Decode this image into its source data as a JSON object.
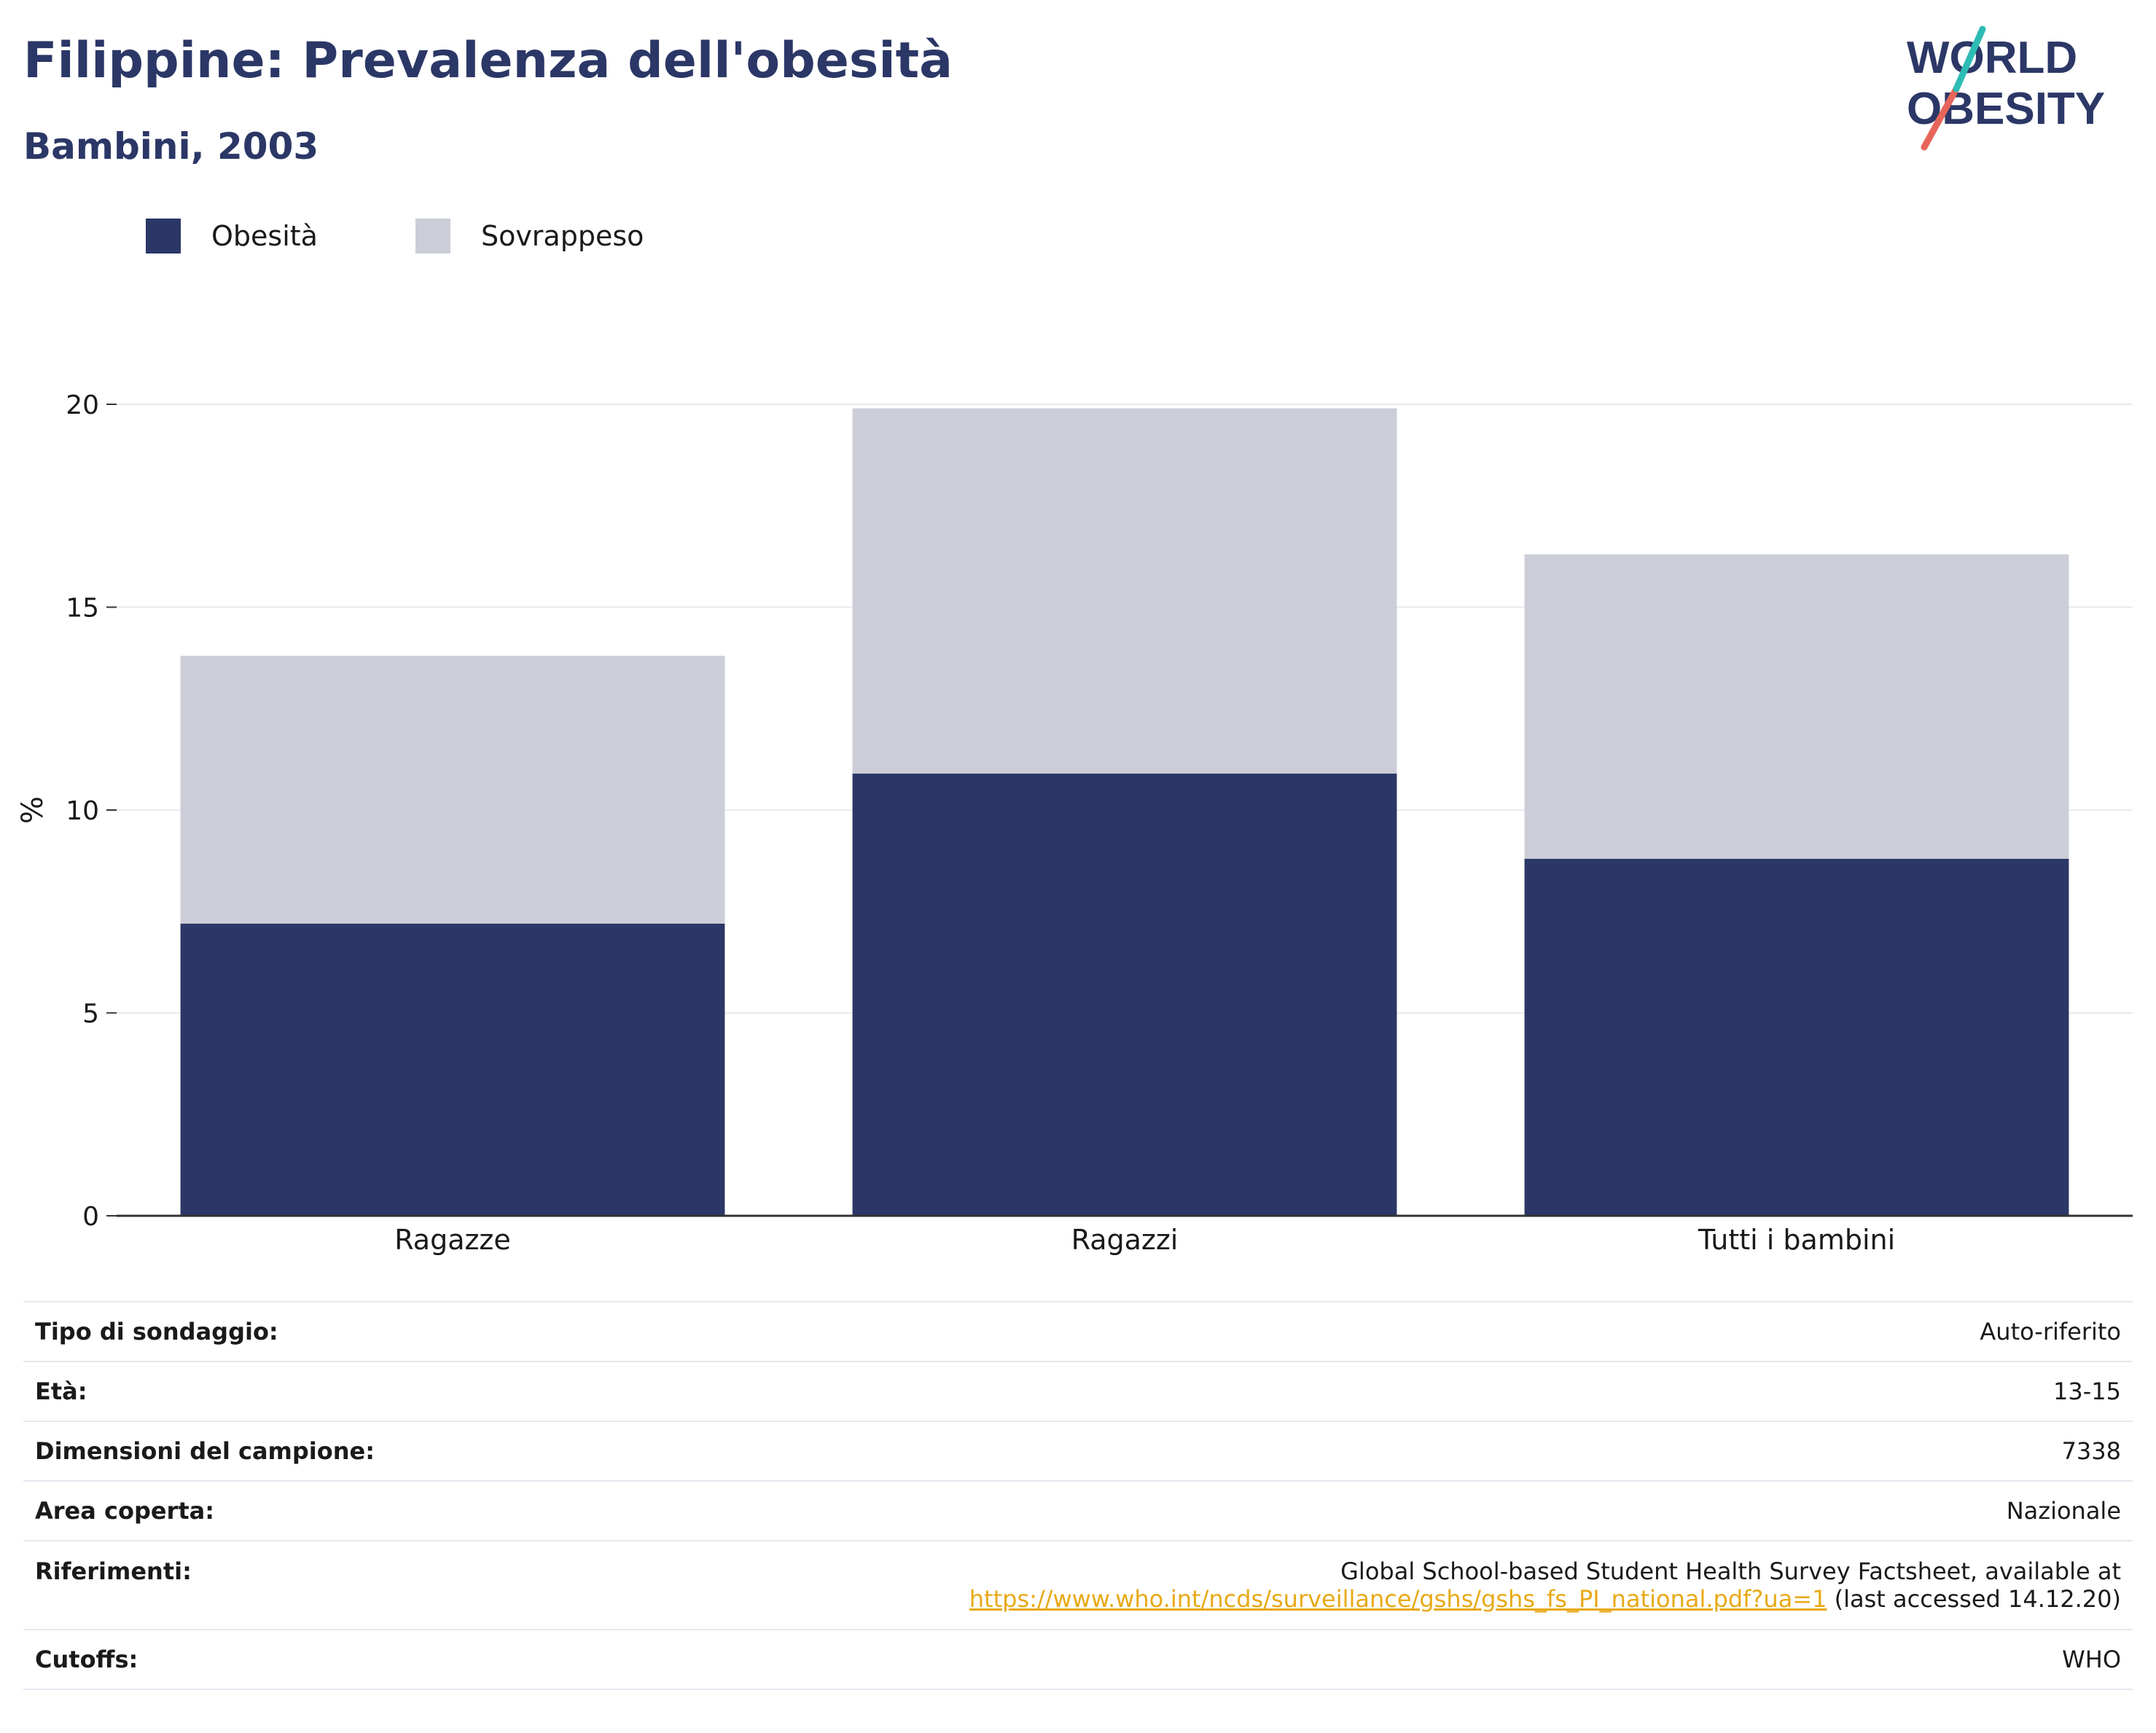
{
  "header": {
    "title": "Filippine: Prevalenza dell'obesità",
    "subtitle": "Bambini, 2003"
  },
  "logo": {
    "line1": "WORLD",
    "line2": "OBESITY"
  },
  "colors": {
    "obesity": "#2b3766",
    "overweight": "#cbcdd8",
    "link": "#e8a916",
    "heading": "#2b3766"
  },
  "chart_data": {
    "type": "bar",
    "stacked": true,
    "categories": [
      "Ragazze",
      "Ragazzi",
      "Tutti i bambini"
    ],
    "series": [
      {
        "name": "Obesità",
        "values": [
          7.2,
          10.9,
          8.8
        ],
        "color": "#2b3766"
      },
      {
        "name": "Sovrappeso",
        "values": [
          6.6,
          9.0,
          7.5
        ],
        "color": "#cbcdd8"
      }
    ],
    "totals": [
      13.8,
      19.9,
      16.3
    ],
    "ylabel": "%",
    "ylim": [
      0,
      20
    ],
    "yticks": [
      0,
      5,
      10,
      15,
      20
    ],
    "grid": true,
    "legend_position": "top-left"
  },
  "meta": {
    "survey_type": {
      "label": "Tipo di sondaggio:",
      "value": "Auto-riferito"
    },
    "age": {
      "label": "Età:",
      "value": "13-15"
    },
    "sample_size": {
      "label": "Dimensioni del campione:",
      "value": "7338"
    },
    "area": {
      "label": "Area coperta:",
      "value": "Nazionale"
    },
    "references": {
      "label": "Riferimenti:",
      "line1": "Global School-based Student Health Survey Factsheet, available at",
      "url": "https://www.who.int/ncds/surveillance/gshs/gshs_fs_PI_national.pdf?ua=1",
      "suffix": " (last accessed 14.12.20)"
    },
    "cutoffs": {
      "label": "Cutoffs:",
      "value": "WHO"
    }
  }
}
